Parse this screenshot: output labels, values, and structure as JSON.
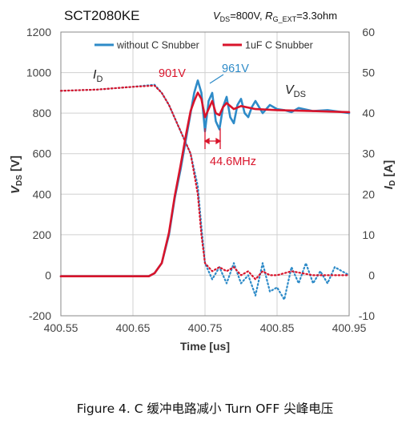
{
  "chart_data": {
    "type": "line",
    "title": "SCT2080KE",
    "subtitle": {
      "vds_symbol": "V",
      "vds_sub": "DS",
      "vds_val": "=800V, ",
      "rg_symbol": "R",
      "rg_sub": "G_EXT",
      "rg_val": "=3.3ohm"
    },
    "xlabel": "Time [us]",
    "ylabel_left": {
      "symbol": "V",
      "sub": "DS",
      "unit": "[V]"
    },
    "ylabel_right": {
      "symbol": "I",
      "sub": "D",
      "unit": "[A]"
    },
    "xlim": [
      400.55,
      400.95
    ],
    "ylim_left": [
      -200,
      1200
    ],
    "ylim_right": [
      -10,
      60
    ],
    "x_ticks": [
      "400.55",
      "400.65",
      "400.75",
      "400.85",
      "400.95"
    ],
    "y_left_ticks": [
      "-200",
      "0",
      "200",
      "400",
      "600",
      "800",
      "1000",
      "1200"
    ],
    "y_right_ticks": [
      "-10",
      "0",
      "10",
      "20",
      "30",
      "40",
      "50",
      "60"
    ],
    "grid": true,
    "legend_position": "top",
    "series": [
      {
        "name": "without C Snubber",
        "color": "#2E8BC8",
        "style": "solid",
        "axis": "left",
        "x": [
          400.55,
          400.6,
          400.65,
          400.672,
          400.68,
          400.69,
          400.7,
          400.708,
          400.716,
          400.724,
          400.73,
          400.735,
          400.74,
          400.745,
          400.75,
          400.755,
          400.76,
          400.765,
          400.77,
          400.775,
          400.78,
          400.785,
          400.79,
          400.795,
          400.8,
          400.805,
          400.81,
          400.815,
          400.82,
          400.83,
          400.84,
          400.85,
          400.86,
          400.87,
          400.88,
          400.9,
          400.92,
          400.95
        ],
        "y": [
          -5,
          -5,
          -5,
          -5,
          10,
          60,
          200,
          380,
          520,
          680,
          800,
          900,
          961,
          900,
          710,
          860,
          900,
          760,
          720,
          830,
          880,
          780,
          750,
          840,
          870,
          800,
          780,
          830,
          860,
          800,
          840,
          820,
          815,
          805,
          825,
          810,
          815,
          800
        ]
      },
      {
        "name": "1uF C Snubber",
        "color": "#D9142B",
        "style": "solid",
        "axis": "left",
        "x": [
          400.55,
          400.6,
          400.65,
          400.672,
          400.68,
          400.69,
          400.7,
          400.708,
          400.716,
          400.724,
          400.73,
          400.735,
          400.74,
          400.745,
          400.75,
          400.755,
          400.76,
          400.765,
          400.77,
          400.775,
          400.78,
          400.79,
          400.8,
          400.82,
          400.85,
          400.9,
          400.95
        ],
        "y": [
          -5,
          -5,
          -5,
          -5,
          10,
          60,
          210,
          390,
          540,
          700,
          810,
          860,
          901,
          870,
          780,
          820,
          860,
          800,
          790,
          830,
          850,
          820,
          835,
          820,
          815,
          810,
          805
        ]
      },
      {
        "name": "I_D without C Snubber",
        "color": "#2E8BC8",
        "style": "dotted",
        "axis": "right",
        "x": [
          400.55,
          400.6,
          400.65,
          400.68,
          400.69,
          400.7,
          400.71,
          400.72,
          400.73,
          400.74,
          400.745,
          400.75,
          400.755,
          400.76,
          400.77,
          400.78,
          400.79,
          400.8,
          400.81,
          400.82,
          400.83,
          400.84,
          400.85,
          400.86,
          400.87,
          400.88,
          400.89,
          400.9,
          400.91,
          400.92,
          400.93,
          400.95
        ],
        "y": [
          45.5,
          45.8,
          46.5,
          47,
          45,
          42,
          38,
          34,
          30,
          22,
          12,
          3,
          1,
          -1,
          2,
          -2,
          3,
          -2,
          0,
          -5,
          3,
          -4,
          -3,
          -6,
          2,
          -2,
          3,
          -2,
          1,
          -2,
          2,
          0
        ]
      },
      {
        "name": "I_D 1uF C Snubber",
        "color": "#D9142B",
        "style": "dotted",
        "axis": "right",
        "x": [
          400.55,
          400.6,
          400.65,
          400.68,
          400.69,
          400.7,
          400.71,
          400.72,
          400.73,
          400.74,
          400.745,
          400.75,
          400.755,
          400.76,
          400.77,
          400.78,
          400.79,
          400.8,
          400.81,
          400.82,
          400.83,
          400.84,
          400.85,
          400.87,
          400.9,
          400.95
        ],
        "y": [
          45.5,
          45.8,
          46.5,
          46.8,
          45,
          42,
          38,
          34,
          30,
          20,
          10,
          3,
          2,
          1,
          2,
          1,
          2,
          0,
          1,
          -1,
          1,
          0,
          0,
          1,
          0,
          0
        ]
      }
    ],
    "annotations": [
      {
        "text": "901V",
        "color": "#D9142B",
        "x": 400.724,
        "y": 960
      },
      {
        "text": "961V",
        "color": "#2E8BC8",
        "x": 400.762,
        "y": 1020
      },
      {
        "text": "44.6MHz",
        "color": "#D9142B",
        "x": 400.752,
        "y": 580
      }
    ],
    "curve_labels": {
      "id_symbol": "I",
      "id_sub": "D",
      "vds_symbol": "V",
      "vds_sub": "DS"
    }
  },
  "caption": "Figure 4. C 缓冲电路减小 Turn OFF 尖峰电压"
}
